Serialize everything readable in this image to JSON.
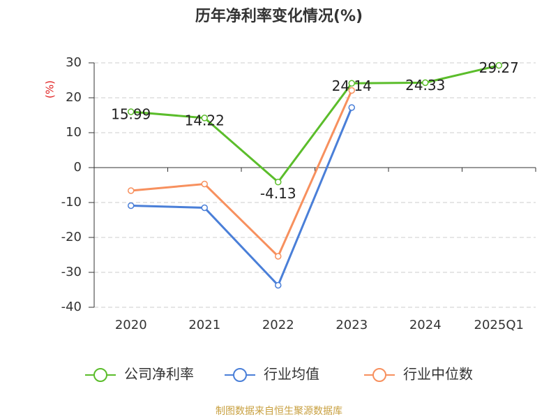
{
  "chart_data": {
    "type": "line",
    "title": "历年净利率变化情况(%)",
    "y_label": "(%)",
    "categories": [
      "2020",
      "2021",
      "2022",
      "2023",
      "2024",
      "2025Q1"
    ],
    "series": [
      {
        "name": "公司净利率",
        "color": "#5bbd2b",
        "values": [
          15.99,
          14.22,
          -4.13,
          24.14,
          24.33,
          29.27
        ],
        "data_labels": true
      },
      {
        "name": "行业均值",
        "color": "#4a7fd8",
        "values": [
          -10.9,
          -11.5,
          -33.7,
          17.2,
          null,
          null
        ]
      },
      {
        "name": "行业中位数",
        "color": "#f7905e",
        "values": [
          -6.6,
          -4.7,
          -25.4,
          22.1,
          null,
          null
        ]
      }
    ],
    "ylim": [
      -40,
      30
    ],
    "yticks": [
      -40,
      -30,
      -20,
      -10,
      0,
      10,
      20,
      30
    ],
    "grid": true,
    "legend": "bottom",
    "source": "制图数据来自恒生聚源数据库"
  }
}
